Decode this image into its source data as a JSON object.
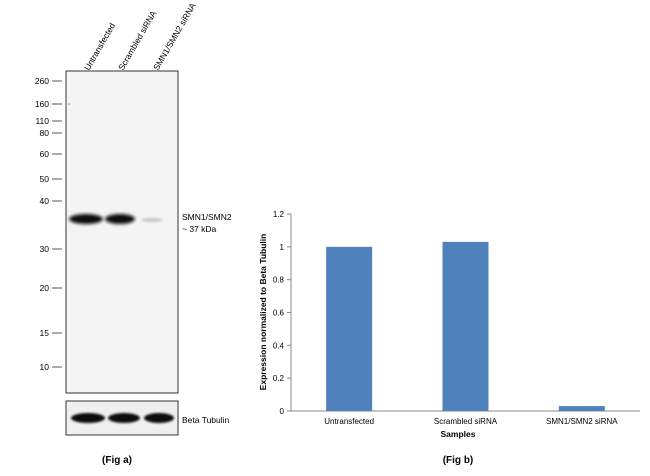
{
  "fig_a": {
    "lanes": [
      "Untransfected",
      "Scrambled siRNA",
      "SMN1/SMN2 siRNA"
    ],
    "markers": [
      "260",
      "160",
      "110",
      "80",
      "60",
      "50",
      "40",
      "30",
      "20",
      "15",
      "10"
    ],
    "band_label_line1": "SMN1/SMN2",
    "band_label_line2": "~ 37 kDa",
    "loading_control_label": "Beta Tubulin",
    "caption": "(Fig a)"
  },
  "fig_b": {
    "caption": "(Fig b)"
  },
  "chart_data": {
    "type": "bar",
    "categories": [
      "Untransfected",
      "Scrambled siRNA",
      "SMN1/SMN2 siRNA"
    ],
    "values": [
      1.0,
      1.03,
      0.03
    ],
    "title": "",
    "xlabel": "Samples",
    "ylabel": "Expression  normalized to Beta Tubulin",
    "ylim": [
      0,
      1.2
    ],
    "yticks": [
      "0",
      "0.2",
      "0.4",
      "0.6",
      "0.8",
      "1",
      "1.2"
    ],
    "bar_color": "#4f81bd",
    "grid": false,
    "legend": "none"
  }
}
